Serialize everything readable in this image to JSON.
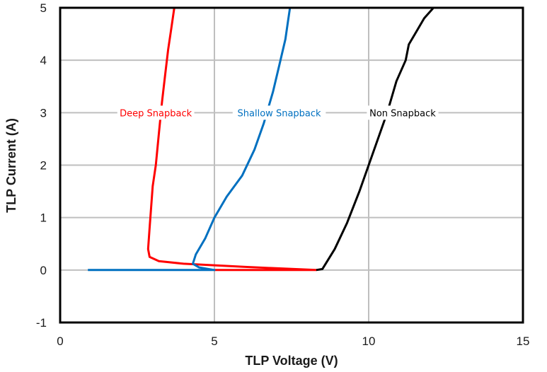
{
  "chart_data": {
    "type": "line",
    "title": "",
    "xlabel": "TLP Voltage (V)",
    "ylabel": "TLP Current (A)",
    "xlim": [
      0,
      15
    ],
    "ylim": [
      -1,
      5
    ],
    "xticks": [
      0,
      5,
      10,
      15
    ],
    "yticks": [
      -1,
      0,
      1,
      2,
      3,
      4,
      5
    ],
    "grid": true,
    "legend": "inline labels",
    "series": [
      {
        "name": "Deep Snapback",
        "color": "#ff0000",
        "label_pos": [
          3.1,
          3
        ],
        "points": [
          [
            5.0,
            0.0
          ],
          [
            8.3,
            0.0
          ],
          [
            6.0,
            0.06
          ],
          [
            4.0,
            0.12
          ],
          [
            3.2,
            0.17
          ],
          [
            2.9,
            0.25
          ],
          [
            2.85,
            0.4
          ],
          [
            2.9,
            0.8
          ],
          [
            2.95,
            1.2
          ],
          [
            3.0,
            1.6
          ],
          [
            3.1,
            2.0
          ],
          [
            3.2,
            2.6
          ],
          [
            3.3,
            3.2
          ],
          [
            3.4,
            3.7
          ],
          [
            3.5,
            4.2
          ],
          [
            3.6,
            4.6
          ],
          [
            3.7,
            5.0
          ]
        ]
      },
      {
        "name": "Shallow Snapback",
        "color": "#0070c0",
        "label_pos": [
          7.1,
          3
        ],
        "points": [
          [
            0.9,
            0.0
          ],
          [
            5.0,
            0.0
          ],
          [
            4.5,
            0.05
          ],
          [
            4.3,
            0.12
          ],
          [
            4.4,
            0.3
          ],
          [
            4.7,
            0.6
          ],
          [
            5.0,
            1.0
          ],
          [
            5.4,
            1.4
          ],
          [
            5.9,
            1.8
          ],
          [
            6.3,
            2.3
          ],
          [
            6.6,
            2.8
          ],
          [
            6.9,
            3.4
          ],
          [
            7.1,
            3.9
          ],
          [
            7.3,
            4.4
          ],
          [
            7.4,
            4.8
          ],
          [
            7.45,
            5.0
          ]
        ]
      },
      {
        "name": "Non Snapback",
        "color": "#000000",
        "label_pos": [
          11.1,
          3
        ],
        "points": [
          [
            8.3,
            0.0
          ],
          [
            8.5,
            0.02
          ],
          [
            8.9,
            0.4
          ],
          [
            9.3,
            0.9
          ],
          [
            9.7,
            1.5
          ],
          [
            10.0,
            2.0
          ],
          [
            10.3,
            2.5
          ],
          [
            10.6,
            3.0
          ],
          [
            10.9,
            3.6
          ],
          [
            11.2,
            4.0
          ],
          [
            11.3,
            4.3
          ],
          [
            11.5,
            4.5
          ],
          [
            11.8,
            4.8
          ],
          [
            12.1,
            5.0
          ]
        ]
      }
    ]
  },
  "labels": {
    "deep": "Deep Snapback",
    "shallow": "Shallow Snapback",
    "non": "Non Snapback",
    "xlabel": "TLP Voltage (V)",
    "ylabel": "TLP Current (A)"
  }
}
